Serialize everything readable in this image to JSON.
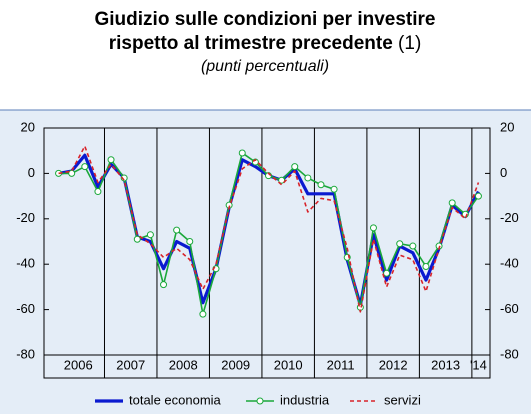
{
  "chart_data": {
    "type": "line",
    "title": [
      "Giudizio sulle condizioni per investire",
      "rispetto al trimestre precedente"
    ],
    "title_note": "(1)",
    "subtitle": "(punti percentuali)",
    "categories": [
      "2006",
      null,
      null,
      null,
      "2007",
      null,
      null,
      null,
      "2008",
      null,
      null,
      null,
      "2009",
      null,
      null,
      null,
      "2010",
      null,
      null,
      null,
      "2011",
      null,
      null,
      null,
      "2012",
      null,
      null,
      null,
      "2013",
      null,
      null,
      null,
      "'14"
    ],
    "series": [
      {
        "name": "totale economia",
        "color": "#0a1ad0",
        "width": 3.2,
        "dash": false,
        "marker": null,
        "values": [
          0,
          1,
          8,
          -6,
          4,
          -2,
          -28,
          -30,
          -42,
          -30,
          -33,
          -57,
          -42,
          -15,
          6,
          3,
          -1,
          -3,
          2,
          -9,
          -9,
          -9,
          -38,
          -58,
          -27,
          -47,
          -32,
          -35,
          -47,
          -33,
          -14,
          -19,
          -8
        ]
      },
      {
        "name": "industria",
        "color": "#1aa83a",
        "width": 1.6,
        "dash": false,
        "marker": "circle",
        "values": [
          0,
          0,
          3,
          -8,
          6,
          -2,
          -29,
          -27,
          -49,
          -25,
          -30,
          -62,
          -42,
          -14,
          9,
          5,
          -1,
          -3,
          3,
          -2,
          -5,
          -7,
          -37,
          -59,
          -24,
          -44,
          -31,
          -32,
          -41,
          -32,
          -13,
          -18,
          -10
        ]
      },
      {
        "name": "servizi",
        "color": "#d8232a",
        "width": 1.6,
        "dash": true,
        "marker": null,
        "values": [
          0,
          1,
          12,
          -4,
          4,
          -3,
          -27,
          -31,
          -37,
          -33,
          -38,
          -51,
          -40,
          -15,
          2,
          6,
          0,
          -5,
          1,
          -17,
          -11,
          -12,
          -33,
          -61,
          -29,
          -50,
          -36,
          -38,
          -52,
          -33,
          -15,
          -20,
          -4
        ]
      }
    ],
    "ylim": [
      -80,
      20
    ],
    "yticks": [
      20,
      0,
      -20,
      -40,
      -60,
      -80
    ],
    "mirror_y_axis": true,
    "year_separators": true
  }
}
